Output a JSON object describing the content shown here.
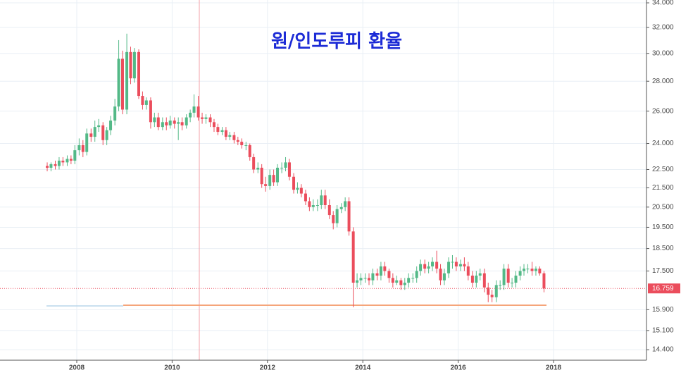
{
  "chart_data": {
    "type": "candlestick",
    "title": "원/인도루피 환율",
    "log_y": true,
    "grid": true,
    "up_color": "#53b987",
    "down_color": "#eb4d5c",
    "xlim": [
      2006.39,
      2019.95
    ],
    "xticks": [
      2008,
      2010,
      2012,
      2014,
      2016,
      2018
    ],
    "ylim": [
      14.03,
      34.24
    ],
    "yticks": [
      {
        "value": 14.4,
        "label": "14.400"
      },
      {
        "value": 15.1,
        "label": "15.100"
      },
      {
        "value": 15.9,
        "label": "15.900"
      },
      {
        "value": 17.5,
        "label": "17.500"
      },
      {
        "value": 18.5,
        "label": "18.500"
      },
      {
        "value": 19.5,
        "label": "19.500"
      },
      {
        "value": 20.5,
        "label": "20.500"
      },
      {
        "value": 21.5,
        "label": "21.500"
      },
      {
        "value": 22.5,
        "label": "22.500"
      },
      {
        "value": 24,
        "label": "24.000"
      },
      {
        "value": 26,
        "label": "26.000"
      },
      {
        "value": 28,
        "label": "28.000"
      },
      {
        "value": 30,
        "label": "30.000"
      },
      {
        "value": 32,
        "label": "32.000"
      },
      {
        "value": 34,
        "label": "34.000"
      }
    ],
    "last_price": 16.759,
    "x": [
      2007.38,
      2007.46,
      2007.55,
      2007.63,
      2007.71,
      2007.8,
      2007.88,
      2007.96,
      2008.05,
      2008.13,
      2008.21,
      2008.3,
      2008.38,
      2008.46,
      2008.55,
      2008.63,
      2008.71,
      2008.8,
      2008.88,
      2008.96,
      2009.05,
      2009.13,
      2009.21,
      2009.3,
      2009.38,
      2009.46,
      2009.55,
      2009.63,
      2009.71,
      2009.8,
      2009.88,
      2009.96,
      2010.05,
      2010.13,
      2010.21,
      2010.3,
      2010.38,
      2010.46,
      2010.55,
      2010.63,
      2010.71,
      2010.8,
      2010.88,
      2010.96,
      2011.05,
      2011.13,
      2011.21,
      2011.3,
      2011.38,
      2011.46,
      2011.55,
      2011.63,
      2011.71,
      2011.8,
      2011.88,
      2011.96,
      2012.05,
      2012.13,
      2012.21,
      2012.3,
      2012.38,
      2012.46,
      2012.55,
      2012.63,
      2012.71,
      2012.8,
      2012.88,
      2012.96,
      2013.05,
      2013.13,
      2013.21,
      2013.3,
      2013.38,
      2013.46,
      2013.55,
      2013.63,
      2013.71,
      2013.8,
      2013.88,
      2013.96,
      2014.05,
      2014.13,
      2014.21,
      2014.3,
      2014.38,
      2014.46,
      2014.55,
      2014.63,
      2014.71,
      2014.8,
      2014.88,
      2014.96,
      2015.05,
      2015.13,
      2015.21,
      2015.3,
      2015.38,
      2015.46,
      2015.55,
      2015.63,
      2015.71,
      2015.8,
      2015.88,
      2015.96,
      2016.05,
      2016.13,
      2016.21,
      2016.3,
      2016.38,
      2016.46,
      2016.55,
      2016.63,
      2016.71,
      2016.8,
      2016.88,
      2016.96,
      2017.05,
      2017.13,
      2017.21,
      2017.3,
      2017.38,
      2017.46,
      2017.55,
      2017.63,
      2017.71,
      2017.8
    ],
    "open": [
      22.7,
      22.6,
      22.8,
      22.7,
      23.0,
      22.9,
      23.1,
      23.0,
      23.6,
      23.9,
      23.5,
      24.6,
      24.4,
      25.0,
      25.1,
      24.2,
      24.8,
      25.4,
      26.3,
      29.6,
      26.1,
      30.1,
      28.2,
      30.1,
      27.0,
      26.4,
      26.7,
      25.3,
      25.6,
      25.0,
      25.3,
      25.1,
      25.4,
      25.2,
      25.3,
      25.1,
      25.6,
      25.9,
      26.3,
      25.6,
      25.5,
      25.6,
      25.3,
      25.0,
      24.7,
      24.8,
      24.4,
      24.5,
      24.2,
      24.1,
      23.9,
      23.9,
      23.2,
      22.5,
      22.6,
      21.7,
      21.6,
      22.2,
      21.8,
      22.6,
      22.6,
      22.9,
      22.1,
      21.4,
      21.5,
      21.2,
      20.8,
      20.5,
      20.6,
      20.6,
      21.1,
      20.6,
      20.1,
      19.7,
      20.4,
      20.5,
      20.8,
      19.3,
      17.0,
      17.1,
      17.2,
      17.2,
      17.1,
      17.4,
      17.3,
      17.7,
      17.5,
      17.2,
      17.0,
      17.1,
      16.9,
      17.0,
      17.2,
      17.2,
      17.5,
      17.8,
      17.6,
      17.7,
      17.9,
      17.6,
      17.1,
      17.4,
      17.9,
      17.9,
      17.7,
      17.8,
      17.7,
      17.3,
      17.0,
      17.3,
      17.4,
      16.8,
      16.5,
      16.4,
      16.9,
      16.9,
      17.6,
      17.0,
      17.0,
      17.3,
      17.5,
      17.6,
      17.6,
      17.5,
      17.6,
      17.4
    ],
    "high": [
      22.9,
      22.9,
      23.0,
      23.2,
      23.2,
      23.3,
      23.3,
      23.9,
      24.3,
      24.2,
      24.9,
      24.9,
      25.4,
      25.5,
      25.3,
      25.0,
      25.7,
      26.8,
      31.0,
      30.2,
      31.5,
      30.5,
      30.4,
      30.3,
      27.3,
      26.9,
      26.9,
      25.9,
      25.9,
      25.6,
      25.6,
      25.7,
      25.6,
      25.6,
      25.6,
      25.8,
      26.1,
      27.1,
      27.0,
      25.9,
      25.8,
      25.8,
      25.5,
      25.2,
      25.0,
      25.0,
      24.7,
      24.7,
      24.4,
      24.3,
      24.1,
      24.0,
      23.4,
      22.9,
      22.8,
      22.1,
      22.5,
      22.5,
      22.8,
      22.9,
      23.2,
      23.1,
      22.3,
      21.8,
      21.7,
      21.4,
      21.0,
      20.9,
      20.9,
      21.4,
      21.4,
      20.9,
      20.3,
      20.6,
      20.7,
      21.0,
      21.0,
      19.5,
      17.4,
      17.4,
      17.4,
      17.4,
      17.6,
      17.6,
      17.9,
      17.9,
      17.6,
      17.4,
      17.3,
      17.2,
      17.2,
      17.4,
      17.4,
      17.7,
      18.0,
      18.0,
      17.9,
      18.1,
      18.4,
      17.8,
      17.6,
      18.1,
      18.2,
      18.1,
      18.0,
      18.1,
      17.9,
      17.5,
      17.5,
      17.6,
      17.6,
      17.0,
      16.7,
      17.1,
      17.1,
      17.8,
      17.8,
      17.2,
      17.5,
      17.7,
      17.8,
      17.8,
      17.9,
      17.7,
      17.7,
      17.5
    ],
    "low": [
      22.4,
      22.4,
      22.5,
      22.5,
      22.7,
      22.7,
      22.8,
      22.8,
      23.3,
      23.2,
      23.3,
      24.1,
      24.1,
      24.7,
      23.9,
      23.9,
      24.5,
      25.1,
      26.0,
      25.8,
      25.8,
      27.8,
      27.9,
      26.8,
      26.1,
      26.1,
      24.9,
      25.0,
      24.8,
      24.8,
      24.8,
      24.9,
      24.9,
      24.2,
      24.8,
      24.9,
      25.3,
      25.6,
      25.4,
      25.2,
      25.2,
      25.0,
      24.7,
      24.5,
      24.5,
      24.2,
      24.2,
      24.0,
      23.9,
      23.7,
      23.6,
      23.0,
      22.3,
      22.3,
      21.5,
      21.3,
      21.4,
      21.6,
      21.6,
      22.3,
      22.4,
      21.9,
      21.2,
      21.2,
      21.0,
      20.6,
      20.3,
      20.3,
      20.3,
      20.4,
      20.4,
      19.9,
      19.4,
      19.5,
      20.2,
      20.3,
      19.1,
      16.0,
      16.8,
      16.9,
      17.0,
      16.9,
      16.9,
      17.1,
      17.1,
      17.3,
      17.0,
      16.8,
      16.9,
      16.7,
      16.7,
      16.8,
      17.0,
      17.0,
      17.3,
      17.4,
      17.4,
      17.5,
      17.4,
      16.9,
      16.9,
      17.2,
      17.6,
      17.5,
      17.5,
      17.5,
      17.1,
      16.8,
      16.8,
      17.1,
      16.6,
      16.2,
      16.2,
      16.2,
      16.7,
      16.7,
      16.8,
      16.8,
      16.8,
      17.1,
      17.3,
      17.4,
      17.3,
      17.3,
      17.3,
      16.6
    ],
    "close": [
      22.6,
      22.8,
      22.7,
      23.0,
      22.9,
      23.1,
      23.0,
      23.6,
      23.9,
      23.5,
      24.6,
      24.4,
      25.0,
      25.1,
      24.2,
      24.8,
      25.4,
      26.3,
      29.6,
      26.1,
      30.1,
      28.2,
      30.1,
      27.0,
      26.4,
      26.7,
      25.3,
      25.6,
      25.0,
      25.3,
      25.1,
      25.4,
      25.2,
      25.3,
      25.1,
      25.6,
      25.9,
      26.3,
      25.6,
      25.5,
      25.6,
      25.3,
      25.0,
      24.7,
      24.8,
      24.4,
      24.5,
      24.2,
      24.1,
      23.9,
      23.9,
      23.2,
      22.5,
      22.6,
      21.7,
      21.6,
      22.2,
      21.8,
      22.6,
      22.6,
      22.9,
      22.1,
      21.4,
      21.5,
      21.2,
      20.8,
      20.5,
      20.6,
      20.6,
      21.1,
      20.6,
      20.1,
      19.7,
      20.4,
      20.5,
      20.8,
      19.3,
      17.0,
      17.1,
      17.2,
      17.2,
      17.1,
      17.4,
      17.3,
      17.7,
      17.5,
      17.2,
      17.0,
      17.1,
      16.9,
      17.0,
      17.2,
      17.2,
      17.5,
      17.8,
      17.6,
      17.7,
      17.9,
      17.6,
      17.1,
      17.4,
      17.9,
      17.9,
      17.7,
      17.8,
      17.7,
      17.3,
      17.0,
      17.3,
      17.4,
      16.8,
      16.5,
      16.4,
      16.9,
      16.9,
      17.6,
      17.0,
      17.0,
      17.3,
      17.5,
      17.6,
      17.6,
      17.5,
      17.6,
      17.4,
      16.759
    ]
  }
}
